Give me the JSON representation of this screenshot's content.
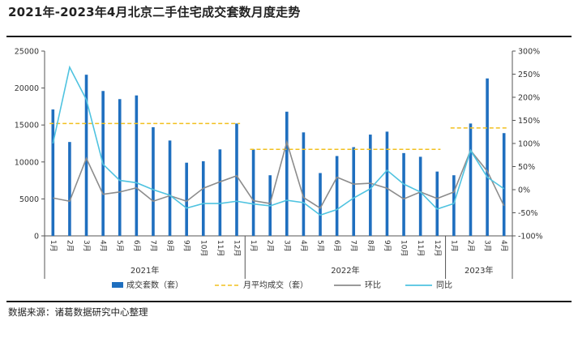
{
  "title": "2021年-2023年4月北京二手住宅成交套数月度走势",
  "source": "数据来源：诸葛数据研究中心整理",
  "chart_data": {
    "type": "bar",
    "title": "2021年-2023年4月北京二手住宅成交套数月度走势",
    "categories": [
      "1月",
      "2月",
      "3月",
      "4月",
      "5月",
      "6月",
      "7月",
      "8月",
      "9月",
      "10月",
      "11月",
      "12月",
      "1月",
      "2月",
      "3月",
      "4月",
      "5月",
      "6月",
      "7月",
      "8月",
      "9月",
      "10月",
      "11月",
      "12月",
      "1月",
      "2月",
      "3月",
      "4月"
    ],
    "year_groups": [
      {
        "label": "2021年",
        "start": 0,
        "end": 11
      },
      {
        "label": "2022年",
        "start": 12,
        "end": 23
      },
      {
        "label": "2023年",
        "start": 24,
        "end": 27
      }
    ],
    "y_left": {
      "min": 0,
      "max": 25000,
      "ticks": [
        "0",
        "5000",
        "10000",
        "15000",
        "20000",
        "25000"
      ]
    },
    "y_right": {
      "min": -100,
      "max": 300,
      "ticks": [
        "-100%",
        "-50%",
        "0%",
        "50%",
        "100%",
        "150%",
        "200%",
        "250%",
        "300%"
      ]
    },
    "series": [
      {
        "name": "成交套数（套）",
        "type": "bar",
        "axis": "left",
        "color": "#1f6fbf",
        "values": [
          17100,
          12700,
          21800,
          19600,
          18500,
          19000,
          14700,
          12900,
          9900,
          10100,
          11700,
          15200,
          11700,
          8200,
          16800,
          14000,
          8500,
          10800,
          12000,
          13700,
          14100,
          11200,
          10700,
          8700,
          8200,
          15200,
          21300,
          13900
        ]
      },
      {
        "name": "月平均成交（套）",
        "type": "dashed",
        "axis": "left",
        "color": "#f2c01e",
        "segments": [
          {
            "start": 0,
            "end": 11,
            "value": 15200
          },
          {
            "start": 12,
            "end": 23,
            "value": 11700
          },
          {
            "start": 24,
            "end": 27,
            "value": 14600
          }
        ]
      },
      {
        "name": "环比",
        "type": "line",
        "axis": "left-scale-percent",
        "color": "#8c8c8c",
        "values": [
          -18,
          -25,
          68,
          -10,
          -5,
          4,
          -25,
          -13,
          -25,
          3,
          17,
          30,
          -24,
          -30,
          103,
          -17,
          -40,
          27,
          12,
          14,
          3,
          -20,
          -5,
          -19,
          -5,
          85,
          40,
          -35
        ]
      },
      {
        "name": "同比",
        "type": "line",
        "axis": "right",
        "color": "#4fc3e0",
        "values": [
          100,
          265,
          195,
          55,
          20,
          15,
          0,
          -12,
          -40,
          -30,
          -30,
          -25,
          -31,
          -35,
          -23,
          -28,
          -55,
          -43,
          -18,
          2,
          42,
          12,
          -5,
          -42,
          -30,
          85,
          27,
          2
        ]
      }
    ],
    "legend": [
      "成交套数（套）",
      "月平均成交（套）",
      "环比",
      "同比"
    ],
    "legend_position": "bottom",
    "grid": false
  }
}
